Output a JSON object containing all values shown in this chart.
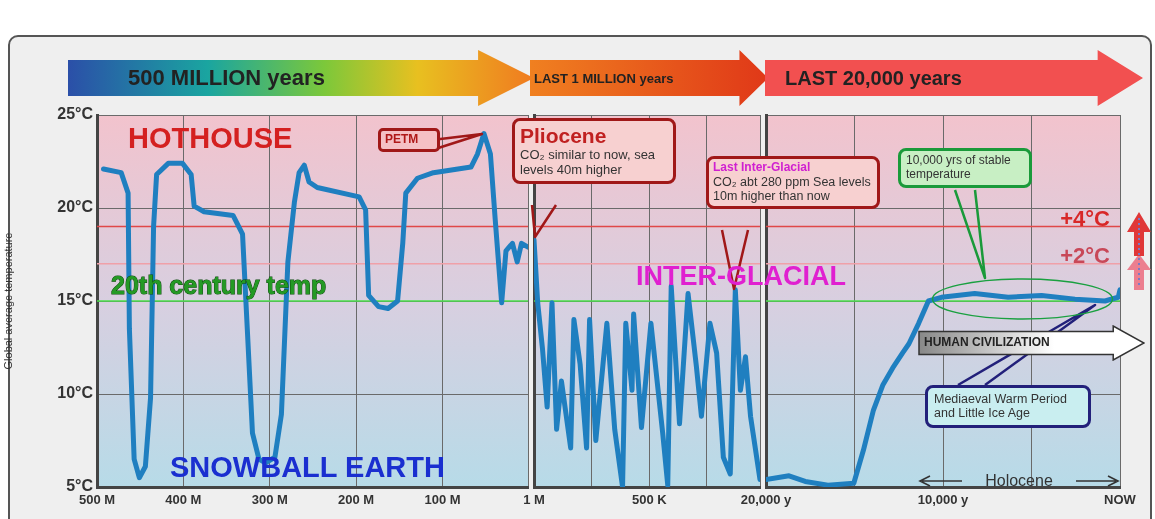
{
  "chart_data": [
    {
      "type": "line",
      "title": "500 MILLION years",
      "ylabel": "Global average temperature",
      "marker": "none",
      "grid": true,
      "x": [
        492.5,
        472,
        464,
        462.5,
        457,
        451,
        444,
        438,
        434.5,
        431,
        417.5,
        401,
        391,
        387.5,
        376,
        342.5,
        331.5,
        326,
        320,
        312.5,
        305,
        294,
        286.5,
        279,
        271.5,
        266,
        260,
        254.5,
        245,
        196.5,
        189,
        185.5,
        174,
        163,
        152,
        146,
        142.5,
        129,
        110.5,
        67,
        59.5,
        52,
        44.5,
        39,
        31.5,
        26.5,
        19,
        13.5,
        8.5,
        1
      ],
      "series": [
        {
          "color": "#1f7fc0",
          "values": [
            22.1,
            21.9,
            20.8,
            13.5,
            6.5,
            5.5,
            6.1,
            9.8,
            19,
            21.8,
            22.4,
            22.4,
            21.8,
            20.1,
            19.8,
            19.6,
            18.6,
            13.5,
            7.9,
            6.5,
            6.3,
            6.6,
            8.9,
            17.1,
            20.3,
            21.9,
            22.3,
            21.4,
            21.1,
            20.6,
            19.9,
            15.3,
            14.7,
            14.6,
            15,
            18.1,
            20.8,
            21.6,
            21.9,
            22.2,
            22.9,
            24,
            22.9,
            19.4,
            14.9,
            17.7,
            18.1,
            17.1,
            18.1,
            17.9
          ]
        }
      ],
      "xlim": [
        500,
        1
      ],
      "xticks": [
        {
          "value": 500,
          "label": "500 M"
        },
        {
          "value": 400,
          "label": "400 M"
        },
        {
          "value": 300,
          "label": "300 M"
        },
        {
          "value": 200,
          "label": "200 M"
        },
        {
          "value": 100,
          "label": "100 M"
        },
        {
          "value": 1,
          "label": null
        }
      ],
      "ylim": [
        5,
        25
      ],
      "yticks": [
        {
          "value": 5,
          "label": "5°C"
        },
        {
          "value": 10,
          "label": "10°C"
        },
        {
          "value": 15,
          "label": "15°C"
        },
        {
          "value": 20,
          "label": "20°C"
        },
        {
          "value": 25,
          "label": "25°C"
        }
      ],
      "ref_lines": [
        {
          "axis": "y",
          "value": 15,
          "label": "20th century temp",
          "color": "#4ce04c"
        },
        {
          "axis": "y",
          "value": 19,
          "color": "#e04848"
        },
        {
          "axis": "y",
          "value": 17,
          "color": "#f0a0a8"
        }
      ],
      "annotations": [
        "HOTHOUSE",
        "SNOWBALL EARTH",
        "PETM"
      ]
    },
    {
      "type": "line",
      "title": "LAST 1 MILLION years",
      "marker": "none",
      "grid": true,
      "tick_labels": "x",
      "x": [
        1000000,
        984000,
        963000,
        943000,
        922000,
        902000,
        881000,
        841000,
        827000,
        800000,
        772000,
        759000,
        732000,
        684000,
        650000,
        616000,
        602000,
        575000,
        568000,
        534000,
        493000,
        442000,
        420000,
        405000,
        369000,
        332000,
        296000,
        274000,
        237000,
        208000,
        179000,
        149000,
        127000,
        105000,
        83000,
        61000,
        20000
      ],
      "series": [
        {
          "color": "#1f7fc0",
          "values": [
            18.3,
            14.9,
            12.4,
            9.3,
            14.9,
            8.1,
            10.7,
            7.1,
            14,
            11.6,
            7.1,
            14,
            7.5,
            13.8,
            8.1,
            5,
            13.8,
            10.2,
            14.3,
            8.2,
            13.8,
            7.9,
            5.1,
            15.8,
            8.4,
            15.4,
            11.5,
            8.8,
            13.8,
            12.2,
            6.6,
            5.7,
            15.6,
            10.2,
            12,
            8.8,
            5.4
          ]
        }
      ],
      "xlim": [
        1000000,
        20000
      ],
      "xticks": [
        {
          "value": 1000000,
          "label": "1 M"
        },
        {
          "value": 750000,
          "label": null
        },
        {
          "value": 500000,
          "label": "500 K"
        },
        {
          "value": 250000,
          "label": null
        },
        {
          "value": 20000,
          "label": null
        }
      ],
      "ylim": [
        5,
        25
      ],
      "yticks": [
        5,
        10,
        15,
        20,
        25
      ],
      "ref_lines": [
        {
          "axis": "y",
          "value": 15,
          "color": "#4ce04c"
        },
        {
          "axis": "y",
          "value": 19,
          "color": "#e04848"
        },
        {
          "axis": "y",
          "value": 17,
          "color": "#f0a0a8"
        }
      ],
      "annotations": [
        "Pliocene\nCO₂ similar to now, sea levels 40m higher",
        "INTER-GLACIAL",
        "Last Inter-Glacial\nCO₂ abt 280 ppm Sea levels 10m higher than now"
      ]
    },
    {
      "type": "line",
      "title": "LAST 20,000 years",
      "marker": "none",
      "grid": true,
      "tick_labels": "x",
      "x": [
        20000,
        18700,
        17785,
        16500,
        15040,
        14490,
        13940,
        13390,
        12840,
        12290,
        11925,
        11375,
        10825,
        10090,
        8210,
        6320,
        4430,
        2545,
        850,
        100,
        0
      ],
      "series": [
        {
          "color": "#1f7fc0",
          "values": [
            5.4,
            5.6,
            5.3,
            5.1,
            5.2,
            7,
            9.1,
            10.5,
            11.4,
            12.2,
            12.7,
            13.8,
            15,
            15.2,
            15.4,
            15.2,
            15.3,
            15.1,
            15,
            15.2,
            15.6
          ]
        }
      ],
      "xlim": [
        20000,
        0
      ],
      "xticks": [
        {
          "value": 20000,
          "label": "20,000 y"
        },
        {
          "value": 15000,
          "label": null
        },
        {
          "value": 10000,
          "label": "10,000 y"
        },
        {
          "value": 5000,
          "label": null
        },
        {
          "value": 0,
          "label": "NOW"
        }
      ],
      "ylim": [
        5,
        25
      ],
      "yticks": [
        5,
        10,
        15,
        20,
        25
      ],
      "ref_lines": [
        {
          "axis": "y",
          "value": 15,
          "color": "#4ce04c"
        },
        {
          "axis": "y",
          "value": 19,
          "label": "+4°C",
          "color": "#e04848"
        },
        {
          "axis": "y",
          "value": 17,
          "label": "+2°C",
          "color": "#f0a0a8"
        }
      ],
      "annotations": [
        "10,000 yrs of stable temperature",
        "HUMAN CIVILIZATION",
        "Mediaeval Warm Period and Little Ice Age",
        "Holocene"
      ]
    }
  ]
}
